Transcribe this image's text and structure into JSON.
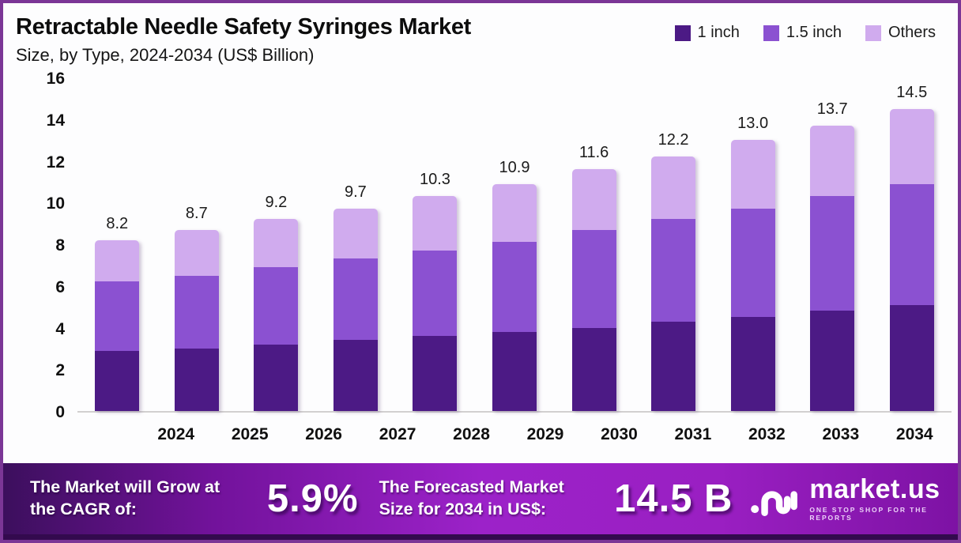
{
  "header": {
    "title": "Retractable Needle Safety Syringes Market",
    "subtitle": "Size, by Type, 2024-2034 (US$ Billion)"
  },
  "legend": [
    {
      "label": "1 inch",
      "color": "#4c1a85"
    },
    {
      "label": "1.5 inch",
      "color": "#8b51d1"
    },
    {
      "label": "Others",
      "color": "#d0abee"
    }
  ],
  "chart_data": {
    "type": "bar",
    "stacked": true,
    "title": "Retractable Needle Safety Syringes Market Size, by Type, 2024-2034 (US$ Billion)",
    "xlabel": "",
    "ylabel": "",
    "categories": [
      "2024",
      "2025",
      "2026",
      "2027",
      "2028",
      "2029",
      "2030",
      "2031",
      "2032",
      "2033",
      "2034"
    ],
    "series": [
      {
        "name": "1 inch",
        "color": "#4c1a85",
        "values": [
          2.9,
          3.0,
          3.2,
          3.4,
          3.6,
          3.8,
          4.0,
          4.3,
          4.5,
          4.8,
          5.1
        ]
      },
      {
        "name": "1.5 inch",
        "color": "#8b51d1",
        "values": [
          3.3,
          3.5,
          3.7,
          3.9,
          4.1,
          4.3,
          4.7,
          4.9,
          5.2,
          5.5,
          5.8
        ]
      },
      {
        "name": "Others",
        "color": "#d0abee",
        "values": [
          2.0,
          2.2,
          2.3,
          2.4,
          2.6,
          2.8,
          2.9,
          3.0,
          3.3,
          3.4,
          3.6
        ]
      }
    ],
    "totals": [
      "8.2",
      "8.7",
      "9.2",
      "9.7",
      "10.3",
      "10.9",
      "11.6",
      "12.2",
      "13.0",
      "13.7",
      "14.5"
    ],
    "ylim": [
      0,
      16
    ],
    "yticks": [
      "0",
      "2",
      "4",
      "6",
      "8",
      "10",
      "12",
      "14",
      "16"
    ],
    "grid": false,
    "legend_position": "top-right"
  },
  "banner": {
    "cagr_label": "The Market will Grow at the CAGR of:",
    "cagr_value": "5.9%",
    "forecast_label": "The Forecasted Market Size for 2034 in US$:",
    "forecast_value": "14.5 B",
    "brand": "market.us",
    "tagline": "ONE STOP SHOP FOR THE REPORTS"
  },
  "colors": {
    "border": "#7b3696",
    "banner_gradient_start": "#3c0f5d",
    "banner_gradient_mid": "#9c22c9",
    "banner_gradient_end": "#7d12a4",
    "axis_line": "#d2d0d0"
  }
}
